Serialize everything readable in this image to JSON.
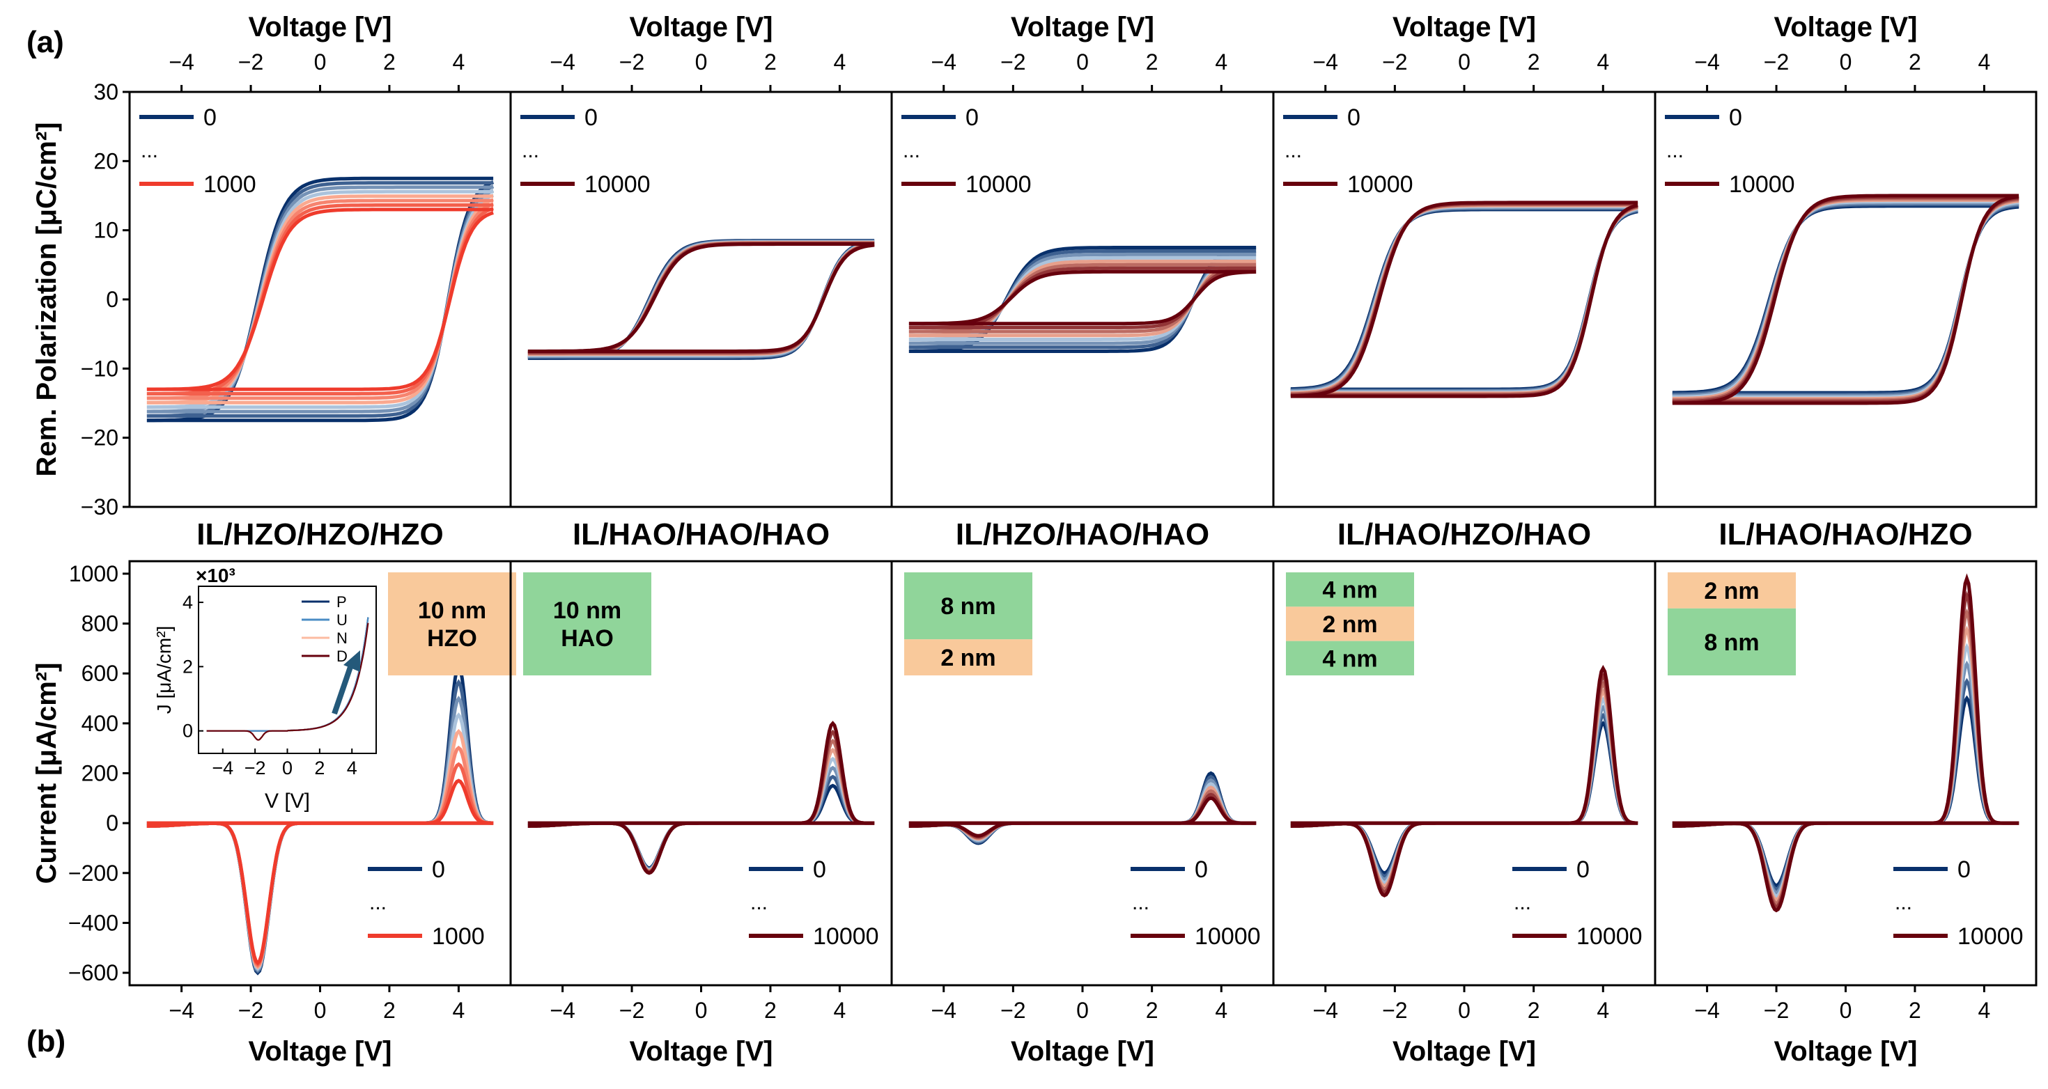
{
  "figure": {
    "label_top": "(a)",
    "label_bottom": "(b)",
    "top_xlabel": "Voltage [V]",
    "bottom_xlabel": "Voltage [V]",
    "top_ylabel": "Rem. Polarization [μC/cm²]",
    "bottom_ylabel": "Current [μA/cm²]",
    "xlim": [
      -5.5,
      5.5
    ],
    "xticks": [
      "-4",
      "-2",
      "0",
      "2",
      "4"
    ],
    "top_ylim": [
      -30,
      30
    ],
    "top_yticks": [
      "-30",
      "-20",
      "-10",
      "0",
      "10",
      "20",
      "30"
    ],
    "bottom_ylim": [
      -650,
      1050
    ],
    "bottom_yticks": [
      "-600",
      "-400",
      "-200",
      "0",
      "200",
      "400",
      "600",
      "800",
      "1000"
    ],
    "colors": {
      "dark_blue": "#08306b",
      "mid_blue": "#4a8cc4",
      "light_blue": "#c6dbef",
      "light_red": "#fcbba1",
      "red": "#ef3b2c",
      "dark_red": "#67000d",
      "hzo_fill": "#f9c99b",
      "hao_fill": "#90d59a"
    }
  },
  "inset": {
    "multiplier": "×10³",
    "ylabel": "J [μA/cm²]",
    "xlabel": "V [V]",
    "xticks": [
      "-4",
      "-2",
      "0",
      "2",
      "4"
    ],
    "yticks": [
      "0",
      "2",
      "4"
    ],
    "legend": [
      "P",
      "U",
      "N",
      "D"
    ]
  },
  "chart_data": [
    {
      "type": "line",
      "stack": "IL/HZO/HZO/HZO",
      "legend": {
        "first": "0",
        "ellipsis": "...",
        "last": "1000"
      },
      "layers": [
        {
          "label": "10 nm\nHZO",
          "material": "HZO"
        }
      ],
      "last_color": "red",
      "pv": {
        "Pr_up_start": 17.5,
        "Pr_up_end": 13,
        "Pr_dn_start": -17.5,
        "Pr_dn_end": -13,
        "Vc_neg": -1.8,
        "Vc_pos": 3.7
      },
      "iv": {
        "neg_peak_V": -1.8,
        "neg_peak_start": -600,
        "neg_peak_end": -560,
        "pos_peak_V": 4.0,
        "pos_peak_start": 630,
        "pos_peak_end": 170
      }
    },
    {
      "type": "line",
      "stack": "IL/HAO/HAO/HAO",
      "legend": {
        "first": "0",
        "ellipsis": "...",
        "last": "10000"
      },
      "layers": [
        {
          "label": "10 nm\nHAO",
          "material": "HAO"
        }
      ],
      "last_color": "dark_red",
      "pv": {
        "Pr_up_start": 8.5,
        "Pr_up_end": 8,
        "Pr_dn_start": -8.5,
        "Pr_dn_end": -7.5,
        "Vc_neg": -1.5,
        "Vc_pos": 3.5
      },
      "iv": {
        "neg_peak_V": -1.5,
        "neg_peak_start": -180,
        "neg_peak_end": -200,
        "pos_peak_V": 3.8,
        "pos_peak_start": 150,
        "pos_peak_end": 400
      }
    },
    {
      "type": "line",
      "stack": "IL/HZO/HAO/HAO",
      "legend": {
        "first": "0",
        "ellipsis": "...",
        "last": "10000"
      },
      "layers": [
        {
          "label": "8 nm",
          "material": "HAO"
        },
        {
          "label": "2 nm",
          "material": "HZO"
        }
      ],
      "last_color": "dark_red",
      "pv": {
        "Pr_up_start": 7.5,
        "Pr_up_end": 4,
        "Pr_dn_start": -7.5,
        "Pr_dn_end": -3.5,
        "Vc_neg": -2.2,
        "Vc_pos": 3.2
      },
      "iv": {
        "neg_peak_V": -3.0,
        "neg_peak_start": -80,
        "neg_peak_end": -50,
        "pos_peak_V": 3.7,
        "pos_peak_start": 200,
        "pos_peak_end": 100
      }
    },
    {
      "type": "line",
      "stack": "IL/HAO/HZO/HAO",
      "legend": {
        "first": "0",
        "ellipsis": "...",
        "last": "10000"
      },
      "layers": [
        {
          "label": "4 nm",
          "material": "HAO"
        },
        {
          "label": "2 nm",
          "material": "HZO"
        },
        {
          "label": "4 nm",
          "material": "HAO"
        }
      ],
      "last_color": "dark_red",
      "pv": {
        "Pr_up_start": 13,
        "Pr_up_end": 14,
        "Pr_dn_start": -13,
        "Pr_dn_end": -14,
        "Vc_neg": -2.6,
        "Vc_pos": 3.6
      },
      "iv": {
        "neg_peak_V": -2.3,
        "neg_peak_start": -200,
        "neg_peak_end": -290,
        "pos_peak_V": 4.0,
        "pos_peak_start": 400,
        "pos_peak_end": 620
      }
    },
    {
      "type": "line",
      "stack": "IL/HAO/HAO/HZO",
      "legend": {
        "first": "0",
        "ellipsis": "...",
        "last": "10000"
      },
      "layers": [
        {
          "label": "2 nm",
          "material": "HZO"
        },
        {
          "label": "8 nm",
          "material": "HAO"
        }
      ],
      "last_color": "dark_red",
      "pv": {
        "Pr_up_start": 13.5,
        "Pr_up_end": 15,
        "Pr_dn_start": -13.5,
        "Pr_dn_end": -15,
        "Vc_neg": -2.2,
        "Vc_pos": 3.3
      },
      "iv": {
        "neg_peak_V": -2.0,
        "neg_peak_start": -250,
        "neg_peak_end": -350,
        "pos_peak_V": 3.5,
        "pos_peak_start": 500,
        "pos_peak_end": 980
      }
    }
  ]
}
